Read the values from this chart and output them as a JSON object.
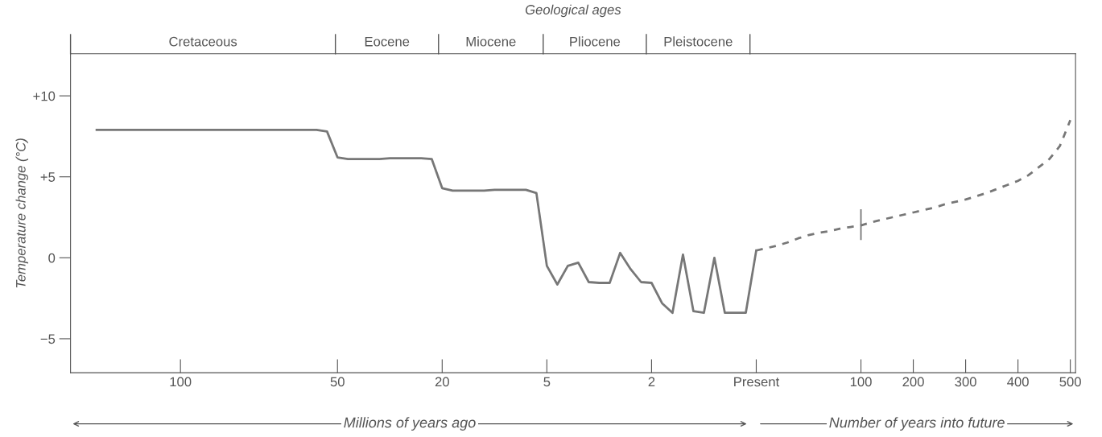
{
  "chart_data": {
    "type": "line",
    "ylabel": "Temperature change (°C)",
    "categories": [
      null,
      null,
      null,
      null,
      null,
      null,
      null,
      null,
      null,
      null,
      "100",
      null,
      null,
      null,
      null,
      null,
      null,
      null,
      null,
      null,
      null,
      null,
      null,
      null,
      null,
      "50",
      null,
      null,
      null,
      null,
      null,
      null,
      null,
      null,
      null,
      "20",
      null,
      null,
      null,
      null,
      null,
      null,
      null,
      null,
      null,
      "5",
      null,
      null,
      null,
      null,
      null,
      null,
      null,
      null,
      null,
      "2",
      null,
      null,
      null,
      null,
      null,
      null,
      null,
      null,
      null,
      "Present",
      null,
      null,
      null,
      null,
      null,
      null,
      null,
      null,
      null,
      "100",
      null,
      null,
      null,
      null,
      "200",
      null,
      null,
      null,
      null,
      "300",
      null,
      null,
      null,
      null,
      "400",
      null,
      null,
      null,
      null,
      "500"
    ],
    "ylim": [
      -7.1,
      12.6
    ],
    "yticks": [
      {
        "value": 10,
        "label": "+10"
      },
      {
        "value": 5,
        "label": "+5"
      },
      0,
      {
        "value": -5,
        "label": "−5"
      }
    ],
    "grid": false,
    "legend": false,
    "marker": "none",
    "series": [
      {
        "color": "#777777",
        "line_style": "solid",
        "values": [
          null,
          null,
          7.9,
          7.9,
          7.9,
          7.9,
          7.9,
          7.9,
          7.9,
          7.9,
          7.9,
          7.9,
          7.9,
          7.9,
          7.9,
          7.9,
          7.9,
          7.9,
          7.9,
          7.9,
          7.9,
          7.9,
          7.9,
          7.9,
          7.8,
          6.2,
          6.1,
          6.1,
          6.1,
          6.1,
          6.15,
          6.15,
          6.15,
          6.15,
          6.1,
          4.3,
          4.15,
          4.15,
          4.15,
          4.15,
          4.2,
          4.2,
          4.2,
          4.2,
          4.0,
          -0.5,
          -1.65,
          -0.5,
          -0.3,
          -1.5,
          -1.55,
          -1.55,
          0.3,
          -0.7,
          -1.5,
          -1.55,
          -2.8,
          -3.4,
          0.2,
          -3.3,
          -3.4,
          0.0,
          -3.4,
          -3.4,
          -3.4,
          0.45,
          null,
          null,
          null,
          null,
          null,
          null,
          null,
          null,
          null,
          null,
          null,
          null,
          null,
          null,
          null,
          null,
          null,
          null,
          null,
          null,
          null,
          null,
          null,
          null,
          null,
          null,
          null,
          null,
          null,
          null
        ]
      },
      {
        "color": "#777777",
        "line_style": "dashed",
        "values": [
          null,
          null,
          null,
          null,
          null,
          null,
          null,
          null,
          null,
          null,
          null,
          null,
          null,
          null,
          null,
          null,
          null,
          null,
          null,
          null,
          null,
          null,
          null,
          null,
          null,
          null,
          null,
          null,
          null,
          null,
          null,
          null,
          null,
          null,
          null,
          null,
          null,
          null,
          null,
          null,
          null,
          null,
          null,
          null,
          null,
          null,
          null,
          null,
          null,
          null,
          null,
          null,
          null,
          null,
          null,
          null,
          null,
          null,
          null,
          null,
          null,
          null,
          null,
          null,
          null,
          0.45,
          0.6,
          0.75,
          0.95,
          1.2,
          1.4,
          1.55,
          1.65,
          1.8,
          1.9,
          2.0,
          2.2,
          2.35,
          2.5,
          2.65,
          2.8,
          2.95,
          3.1,
          3.3,
          3.45,
          3.6,
          3.8,
          4.0,
          4.25,
          4.5,
          4.75,
          5.1,
          5.6,
          6.1,
          6.9,
          8.5
        ],
        "errors": [
          null,
          null,
          null,
          null,
          null,
          null,
          null,
          null,
          null,
          null,
          null,
          null,
          null,
          null,
          null,
          null,
          null,
          null,
          null,
          null,
          null,
          null,
          null,
          null,
          null,
          null,
          null,
          null,
          null,
          null,
          null,
          null,
          null,
          null,
          null,
          null,
          null,
          null,
          null,
          null,
          null,
          null,
          null,
          null,
          null,
          null,
          null,
          null,
          null,
          null,
          null,
          null,
          null,
          null,
          null,
          null,
          null,
          null,
          null,
          null,
          null,
          null,
          null,
          null,
          null,
          null,
          null,
          null,
          null,
          null,
          null,
          null,
          null,
          null,
          null,
          [
            1.1,
            3.0
          ],
          null,
          null,
          null,
          null,
          null,
          null,
          null,
          null,
          null,
          null,
          null,
          null,
          null,
          null,
          null,
          null,
          null,
          null,
          null,
          null
        ]
      }
    ],
    "annotations": [
      "Geological ages",
      "Cretaceous",
      "Eocene",
      "Miocene",
      "Pliocene",
      "Pleistocene",
      "Millions of years ago",
      "Number of years into future"
    ]
  }
}
